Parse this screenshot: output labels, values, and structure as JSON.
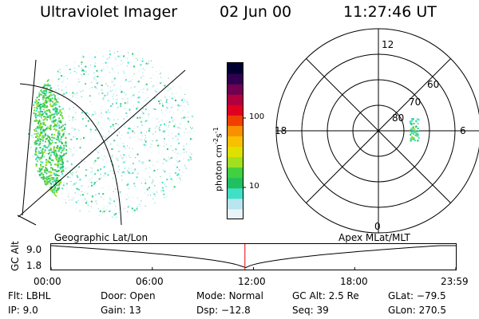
{
  "header": {
    "instrument": "Ultraviolet Imager",
    "date": "02 Jun 00",
    "time": "11:27:46 UT"
  },
  "color_scale": {
    "unit_label": "photon cm",
    "unit_exp1": "-2",
    "unit_mid": "s",
    "unit_exp2": "-1",
    "ticks": [
      {
        "label": "100",
        "value": 100
      },
      {
        "label": "10",
        "value": 10
      }
    ],
    "colors": [
      "#e8f4f8",
      "#b8e6ee",
      "#40e0c8",
      "#20c060",
      "#40d040",
      "#a0e020",
      "#e0e000",
      "#f8c000",
      "#f89000",
      "#f04000",
      "#e00020",
      "#b00040",
      "#700050",
      "#300050",
      "#000030"
    ]
  },
  "polar_plot": {
    "mlt_labels": {
      "top": "12",
      "left": "18",
      "right": "6",
      "bottom": "0"
    },
    "lat_labels": [
      "60",
      "70",
      "80"
    ],
    "aurora_color": "#40e0c8"
  },
  "timeline": {
    "left_label": "Geographic Lat/Lon",
    "right_label": "Apex MLat/MLT",
    "axis_label": "GC Alt",
    "y_ticks": [
      "9.0",
      "1.8"
    ],
    "x_ticks": [
      "00:00",
      "06:00",
      "12:00",
      "18:00",
      "23:59"
    ],
    "current_time_fraction": 0.478,
    "marker_color": "#e00000"
  },
  "info": {
    "filter": {
      "label": "Flt:",
      "value": "LBHL"
    },
    "ip": {
      "label": "IP:",
      "value": "9.0"
    },
    "door": {
      "label": "Door:",
      "value": "Open"
    },
    "gain": {
      "label": "Gain:",
      "value": "13"
    },
    "mode": {
      "label": "Mode:",
      "value": "Normal"
    },
    "dsp": {
      "label": "Dsp:",
      "value": "−12.8"
    },
    "gc_alt": {
      "label": "GC Alt:",
      "value": "2.5 Re"
    },
    "seq": {
      "label": "Seq:",
      "value": "39"
    },
    "glat": {
      "label": "GLat:",
      "value": "−79.5"
    },
    "glon": {
      "label": "GLon:",
      "value": "270.5"
    }
  }
}
